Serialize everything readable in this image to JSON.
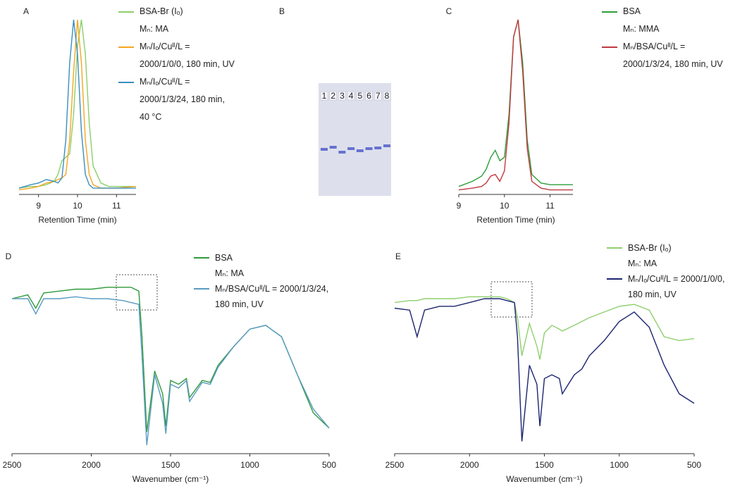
{
  "chart_data": [
    {
      "type": "line",
      "title": "A",
      "xlabel": "Retention Time (min)",
      "annotation": "Mₙ: MA",
      "x": [
        8.5,
        8.8,
        9.0,
        9.2,
        9.4,
        9.5,
        9.6,
        9.7,
        9.8,
        9.9,
        10.0,
        10.1,
        10.2,
        10.3,
        10.4,
        10.6,
        10.8,
        11.0,
        11.5
      ],
      "xlim": [
        8.5,
        11.5
      ],
      "xticks": [
        9,
        10,
        11
      ],
      "ylim": [
        0,
        1
      ],
      "series": [
        {
          "name": "BSA-Br (Iₒ)",
          "color": "#8ccf6a",
          "values": [
            0.02,
            0.03,
            0.03,
            0.04,
            0.06,
            0.1,
            0.18,
            0.2,
            0.22,
            0.45,
            0.85,
            1.0,
            0.8,
            0.4,
            0.15,
            0.05,
            0.03,
            0.03,
            0.03
          ]
        },
        {
          "name": "Mₙ/Iₒ/Cuᴵᴵ/L = 2000/1/0/0, 180 min, UV",
          "color": "#f5a623",
          "values": [
            0.01,
            0.02,
            0.03,
            0.05,
            0.06,
            0.07,
            0.08,
            0.1,
            0.3,
            0.7,
            1.0,
            0.75,
            0.3,
            0.1,
            0.04,
            0.02,
            0.02,
            0.02,
            0.03
          ]
        },
        {
          "name": "Mₙ/Iₒ/Cuᴵᴵ/L = 2000/1/3/24, 180 min, 40 °C",
          "color": "#3a8fbf",
          "values": [
            0.02,
            0.04,
            0.05,
            0.07,
            0.06,
            0.05,
            0.08,
            0.3,
            0.75,
            1.0,
            0.8,
            0.35,
            0.1,
            0.04,
            0.02,
            0.02,
            0.02,
            0.02,
            0.02
          ]
        }
      ]
    },
    {
      "type": "gel",
      "title": "B",
      "categories": [
        "1",
        "2",
        "3",
        "4",
        "5",
        "6",
        "7",
        "8"
      ]
    },
    {
      "type": "line",
      "title": "C",
      "xlabel": "Retention Time (min)",
      "annotation": "Mₙ: MMA",
      "x": [
        9.0,
        9.3,
        9.5,
        9.6,
        9.7,
        9.8,
        9.9,
        10.0,
        10.1,
        10.2,
        10.3,
        10.4,
        10.5,
        10.6,
        10.8,
        11.0,
        11.5
      ],
      "xlim": [
        9,
        11.5
      ],
      "xticks": [
        9,
        10,
        11
      ],
      "ylim": [
        0,
        1
      ],
      "series": [
        {
          "name": "BSA",
          "color": "#2e9e3a",
          "values": [
            0.03,
            0.06,
            0.09,
            0.13,
            0.2,
            0.24,
            0.18,
            0.2,
            0.45,
            0.9,
            1.0,
            0.75,
            0.3,
            0.1,
            0.05,
            0.04,
            0.04
          ]
        },
        {
          "name": "Mₙ/BSA/Cuᴵᴵ/L = 2000/1/3/24, 180 min, UV",
          "color": "#c0393f",
          "values": [
            0.01,
            0.02,
            0.03,
            0.05,
            0.09,
            0.1,
            0.06,
            0.12,
            0.4,
            0.9,
            1.0,
            0.7,
            0.25,
            0.06,
            0.02,
            0.01,
            0.01
          ]
        }
      ]
    },
    {
      "type": "line",
      "title": "D",
      "xlabel": "Wavenumber (cm⁻¹)",
      "annotation": "Mₙ: MA",
      "x": [
        2500,
        2400,
        2350,
        2300,
        2200,
        2100,
        2000,
        1900,
        1800,
        1750,
        1700,
        1680,
        1650,
        1600,
        1550,
        1530,
        1500,
        1450,
        1400,
        1380,
        1300,
        1250,
        1200,
        1100,
        1000,
        900,
        800,
        700,
        600,
        500
      ],
      "xlim": [
        2500,
        500
      ],
      "xticks": [
        2500,
        2000,
        1500,
        1000,
        500
      ],
      "ylim": [
        0,
        1
      ],
      "series": [
        {
          "name": "BSA",
          "color": "#2f9a3a",
          "values": [
            0.8,
            0.82,
            0.75,
            0.83,
            0.84,
            0.85,
            0.85,
            0.86,
            0.86,
            0.86,
            0.84,
            0.6,
            0.1,
            0.42,
            0.3,
            0.13,
            0.37,
            0.35,
            0.38,
            0.28,
            0.37,
            0.36,
            0.45,
            0.55,
            0.64,
            0.66,
            0.6,
            0.4,
            0.2,
            0.12
          ]
        },
        {
          "name": "Mₙ/BSA/Cuᴵᴵ/L = 2000/1/3/24, 180 min, UV",
          "color": "#5a9bc2",
          "values": [
            0.8,
            0.8,
            0.72,
            0.8,
            0.8,
            0.81,
            0.8,
            0.8,
            0.79,
            0.78,
            0.77,
            0.5,
            0.03,
            0.4,
            0.25,
            0.09,
            0.35,
            0.33,
            0.37,
            0.26,
            0.36,
            0.35,
            0.44,
            0.55,
            0.64,
            0.66,
            0.6,
            0.4,
            0.22,
            0.12
          ]
        }
      ]
    },
    {
      "type": "line",
      "title": "E",
      "xlabel": "Wavenumber (cm⁻¹)",
      "annotation": "Mₙ: MA",
      "x": [
        2500,
        2400,
        2350,
        2300,
        2200,
        2100,
        2000,
        1900,
        1800,
        1750,
        1700,
        1680,
        1650,
        1600,
        1550,
        1530,
        1500,
        1450,
        1400,
        1380,
        1300,
        1250,
        1200,
        1100,
        1000,
        900,
        800,
        700,
        600,
        500
      ],
      "xlim": [
        2500,
        500
      ],
      "xticks": [
        2500,
        2000,
        1500,
        1000,
        500
      ],
      "ylim": [
        0,
        1
      ],
      "series": [
        {
          "name": "BSA-Br (Iₒ)",
          "color": "#8fd06e",
          "values": [
            0.78,
            0.79,
            0.79,
            0.8,
            0.8,
            0.8,
            0.81,
            0.81,
            0.81,
            0.8,
            0.78,
            0.7,
            0.5,
            0.67,
            0.55,
            0.48,
            0.62,
            0.66,
            0.64,
            0.63,
            0.66,
            0.68,
            0.7,
            0.73,
            0.76,
            0.77,
            0.74,
            0.6,
            0.58,
            0.59
          ]
        },
        {
          "name": "Mₙ/Iₒ/Cuᴵᴵ/L = 2000/1/0/0, 180 min, UV",
          "color": "#1c2470",
          "values": [
            0.75,
            0.74,
            0.6,
            0.74,
            0.76,
            0.76,
            0.78,
            0.8,
            0.8,
            0.79,
            0.78,
            0.6,
            0.05,
            0.45,
            0.35,
            0.13,
            0.38,
            0.4,
            0.38,
            0.3,
            0.4,
            0.43,
            0.5,
            0.58,
            0.68,
            0.73,
            0.65,
            0.45,
            0.3,
            0.25
          ]
        }
      ]
    }
  ]
}
